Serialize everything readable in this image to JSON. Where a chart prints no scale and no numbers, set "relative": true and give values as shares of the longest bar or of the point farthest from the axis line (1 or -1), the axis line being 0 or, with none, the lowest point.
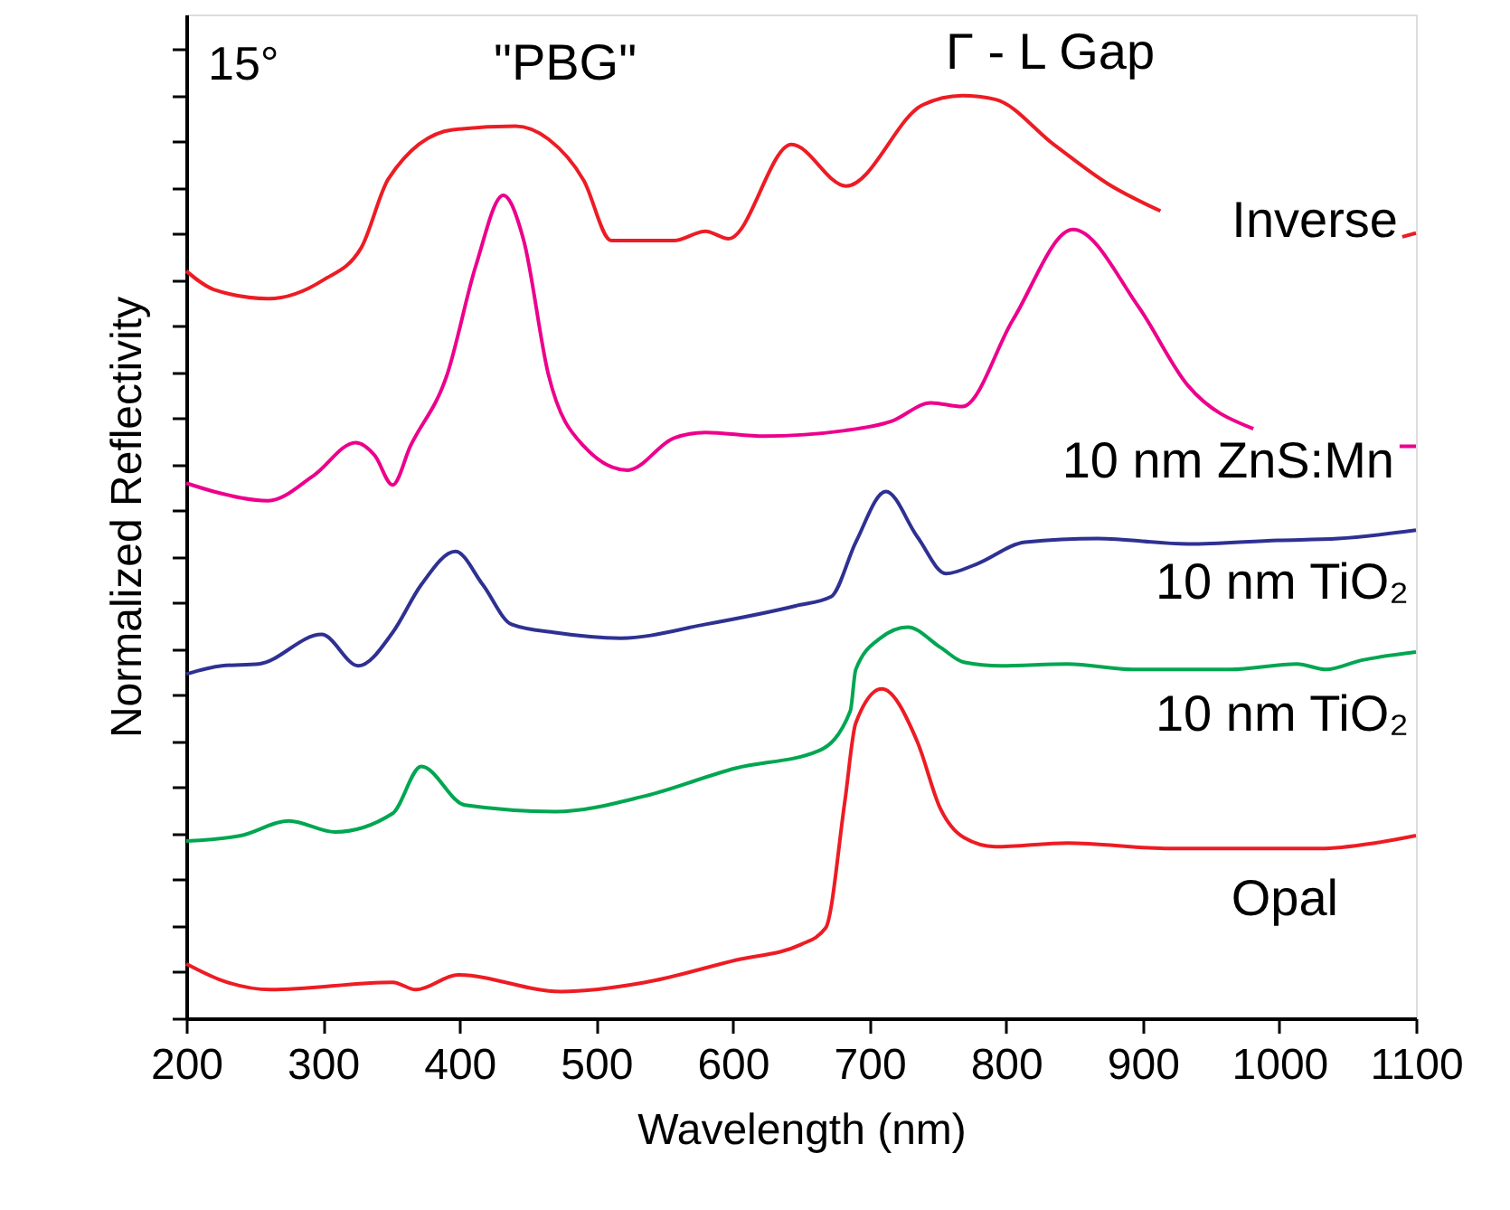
{
  "chart_data": {
    "type": "line",
    "relative": true,
    "xlabel": "Wavelength (nm)",
    "ylabel": "Normalized Reflectivity",
    "xlim": [
      200,
      1100
    ],
    "xticks": [
      200,
      300,
      400,
      500,
      600,
      700,
      800,
      900,
      1000,
      1100
    ],
    "grid": false,
    "marker": "none",
    "line_style": "solid",
    "annotations": [
      "15°",
      "\"PBG\"",
      "Γ - L Gap"
    ],
    "series": [
      {
        "name": "Inverse",
        "color": "#ed1c24",
        "x": [
          200,
          220,
          260,
          300,
          328,
          348,
          395,
          441,
          465,
          491,
          511,
          557,
          580,
          597,
          643,
          683,
          739,
          768,
          792,
          835,
          875,
          913,
          1000,
          1090,
          1100
        ],
        "values": [
          0.81,
          0.79,
          0.78,
          0.8,
          0.835,
          0.91,
          0.963,
          0.967,
          0.953,
          0.908,
          0.843,
          0.843,
          0.853,
          0.845,
          0.947,
          0.902,
          0.99,
          1.0,
          0.996,
          0.947,
          0.904,
          0.875,
          null,
          0.847,
          0.851
        ]
      },
      {
        "name": "10 nm ZnS:Mn",
        "color": "#ec008c",
        "x": [
          200,
          220,
          260,
          293,
          324,
          338,
          351,
          364,
          391,
          412,
          432,
          447,
          465,
          491,
          523,
          557,
          580,
          623,
          682,
          716,
          745,
          768,
          805,
          849,
          897,
          933,
          981,
          1050,
          1088,
          1100
        ],
        "values": [
          0.58,
          0.571,
          0.561,
          0.588,
          0.624,
          0.61,
          0.578,
          0.62,
          0.698,
          0.816,
          0.892,
          0.843,
          0.698,
          0.62,
          0.594,
          0.629,
          0.635,
          0.631,
          0.637,
          0.647,
          0.667,
          0.663,
          0.757,
          0.855,
          0.771,
          0.686,
          0.639,
          null,
          0.62,
          0.62
        ]
      },
      {
        "name": "10 nm TiO₂",
        "color": "#2e3192",
        "x": [
          200,
          226,
          253,
          299,
          326,
          351,
          372,
          397,
          417,
          438,
          470,
          518,
          580,
          646,
          672,
          690,
          712,
          735,
          756,
          778,
          814,
          867,
          933,
          999,
          1043,
          1100
        ],
        "values": [
          0.373,
          0.382,
          0.384,
          0.416,
          0.382,
          0.418,
          0.47,
          0.506,
          0.47,
          0.427,
          0.418,
          0.412,
          0.427,
          0.447,
          0.457,
          0.516,
          0.571,
          0.522,
          0.482,
          0.492,
          0.516,
          0.52,
          0.514,
          0.518,
          0.52,
          0.529
        ]
      },
      {
        "name": "10 nm TiO₂",
        "color": "#00a651",
        "x": [
          200,
          240,
          275,
          309,
          351,
          372,
          404,
          470,
          536,
          602,
          663,
          686,
          690,
          708,
          728,
          752,
          769,
          796,
          845,
          893,
          964,
          1013,
          1034,
          1060,
          1100
        ],
        "values": [
          0.192,
          0.198,
          0.214,
          0.202,
          0.222,
          0.273,
          0.231,
          0.224,
          0.241,
          0.271,
          0.29,
          0.333,
          0.378,
          0.412,
          0.424,
          0.402,
          0.386,
          0.382,
          0.384,
          0.378,
          0.378,
          0.384,
          0.378,
          0.388,
          0.397
        ]
      },
      {
        "name": "Opal",
        "color": "#ed1c24",
        "x": [
          200,
          226,
          262,
          351,
          368,
          399,
          474,
          536,
          602,
          650,
          668,
          682,
          690,
          709,
          735,
          752,
          769,
          792,
          845,
          920,
          964,
          1030,
          1070,
          1100
        ],
        "values": [
          0.059,
          0.041,
          0.031,
          0.039,
          0.031,
          0.047,
          0.029,
          0.039,
          0.063,
          0.08,
          0.098,
          0.235,
          0.32,
          0.357,
          0.3,
          0.227,
          0.196,
          0.186,
          0.19,
          0.184,
          0.184,
          0.184,
          0.19,
          0.198
        ]
      }
    ]
  }
}
